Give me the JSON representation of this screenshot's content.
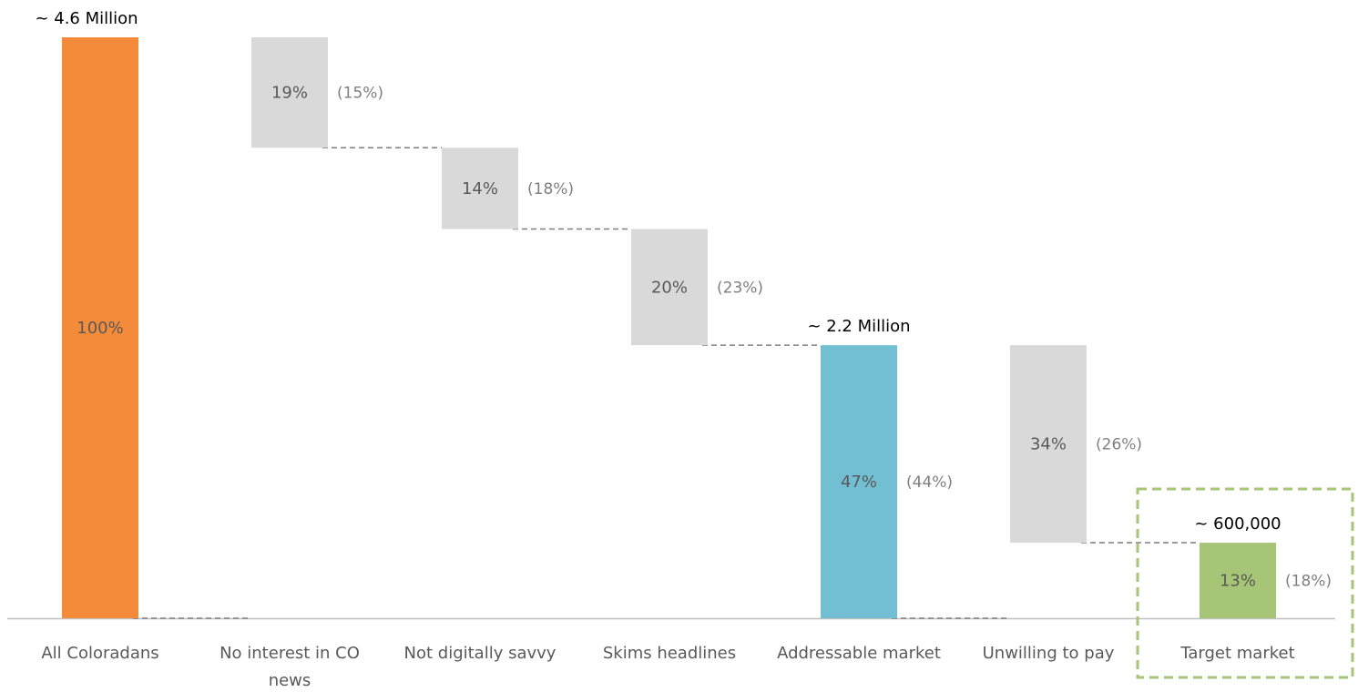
{
  "chart_data": {
    "type": "waterfall",
    "categories": [
      "All Coloradans",
      "No interest in CO news",
      "Not digitally savvy",
      "Skims headlines",
      "Addressable market",
      "Unwilling to pay",
      "Target market"
    ],
    "category_lines": [
      [
        "All Coloradans"
      ],
      [
        "No interest in CO",
        "news"
      ],
      [
        "Not digitally savvy"
      ],
      [
        "Skims headlines"
      ],
      [
        "Addressable market"
      ],
      [
        "Unwilling to pay"
      ],
      [
        "Target market"
      ]
    ],
    "kinds": [
      "total",
      "decrease",
      "decrease",
      "decrease",
      "total",
      "decrease",
      "total"
    ],
    "values": [
      100,
      19,
      14,
      20,
      47,
      34,
      13
    ],
    "value_labels": [
      "100%",
      "19%",
      "14%",
      "20%",
      "47%",
      "34%",
      "13%"
    ],
    "secondary_labels": [
      "",
      "(15%)",
      "(18%)",
      "(23%)",
      "(44%)",
      "(26%)",
      "(18%)"
    ],
    "total_labels": [
      "~ 4.6 Million",
      "",
      "",
      "",
      "~ 2.2 Million",
      "",
      "~ 600,000"
    ],
    "ylim": [
      0,
      100
    ],
    "highlighted_category": "Target market",
    "colors": {
      "All Coloradans": "#f38b3b",
      "decrease": "#d9d9d9",
      "Addressable market": "#72bfd4",
      "Target market": "#a6c577",
      "connector": "#7f7f7f",
      "highlight_box": "#a6c577",
      "axis": "#bfbfbf"
    }
  }
}
